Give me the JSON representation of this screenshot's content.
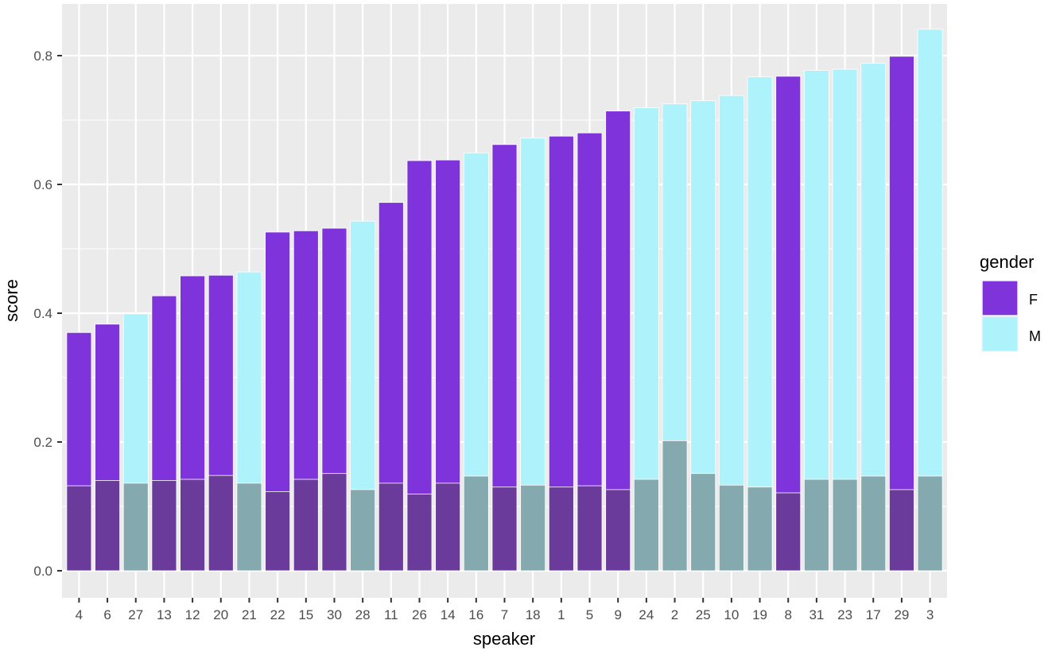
{
  "chart_data": {
    "type": "bar",
    "title": "",
    "xlabel": "speaker",
    "ylabel": "score",
    "ylim": [
      -0.045,
      0.875
    ],
    "yticks": [
      "0.0",
      "0.2",
      "0.4",
      "0.6",
      "0.8"
    ],
    "ytick_values": [
      0,
      0.2,
      0.4,
      0.6,
      0.8
    ],
    "grid": true,
    "categories": [
      "4",
      "6",
      "27",
      "13",
      "12",
      "20",
      "21",
      "22",
      "15",
      "30",
      "28",
      "11",
      "26",
      "14",
      "16",
      "7",
      "18",
      "1",
      "5",
      "9",
      "24",
      "2",
      "25",
      "10",
      "19",
      "8",
      "31",
      "23",
      "17",
      "29",
      "3"
    ],
    "gender": [
      "F",
      "F",
      "M",
      "F",
      "F",
      "F",
      "M",
      "F",
      "F",
      "F",
      "M",
      "F",
      "F",
      "F",
      "M",
      "F",
      "M",
      "F",
      "F",
      "F",
      "M",
      "M",
      "M",
      "M",
      "M",
      "F",
      "M",
      "M",
      "M",
      "F",
      "M"
    ],
    "series": [
      {
        "name": "score",
        "values": [
          0.37,
          0.383,
          0.399,
          0.427,
          0.458,
          0.459,
          0.464,
          0.526,
          0.528,
          0.532,
          0.543,
          0.572,
          0.637,
          0.638,
          0.649,
          0.662,
          0.672,
          0.675,
          0.68,
          0.714,
          0.719,
          0.725,
          0.73,
          0.738,
          0.767,
          0.768,
          0.777,
          0.779,
          0.788,
          0.799,
          0.841
        ]
      },
      {
        "name": "overlay",
        "values": [
          0.132,
          0.14,
          0.136,
          0.14,
          0.142,
          0.148,
          0.136,
          0.123,
          0.142,
          0.151,
          0.126,
          0.136,
          0.119,
          0.136,
          0.147,
          0.13,
          0.133,
          0.13,
          0.132,
          0.126,
          0.142,
          0.202,
          0.151,
          0.133,
          0.13,
          0.121,
          0.142,
          0.142,
          0.147,
          0.126,
          0.147
        ]
      }
    ],
    "legend": {
      "title": "gender",
      "position": "right",
      "entries": [
        {
          "label": "F",
          "color": "#7E33DB",
          "dark": "#6A3B9B"
        },
        {
          "label": "M",
          "color": "#AEF2FB",
          "dark": "#84A9AE"
        }
      ]
    },
    "colors": {
      "panel": "#EBEBEB",
      "grid": "#FFFFFF",
      "axis_text": "#4D4D4D"
    }
  }
}
